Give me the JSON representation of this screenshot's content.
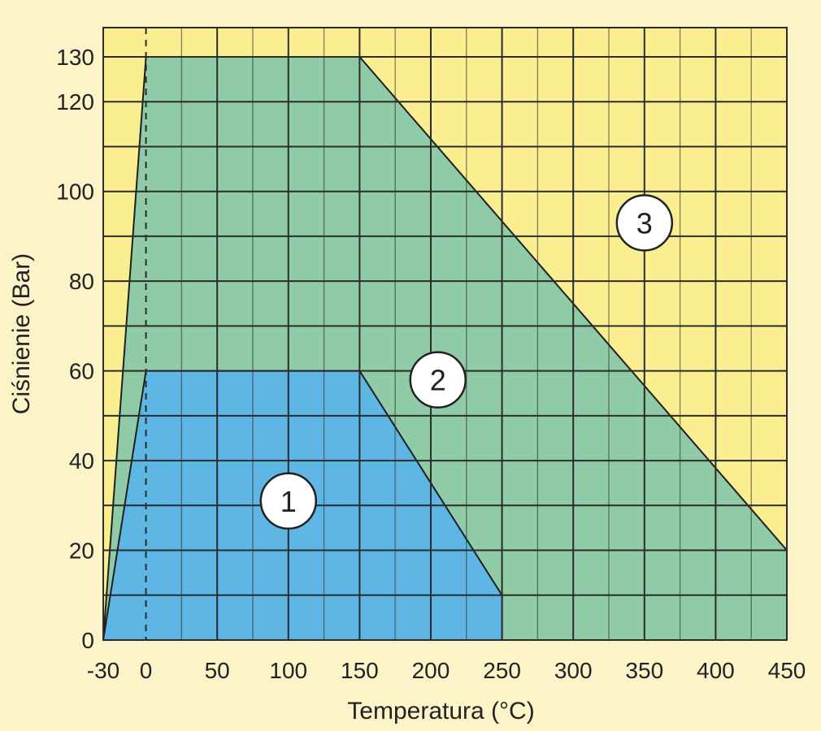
{
  "chart_data": {
    "type": "area",
    "xlabel": "Temperatura (°C)",
    "ylabel": "Ciśnienie (Bar)",
    "xlim": [
      -30,
      450
    ],
    "ylim": [
      0,
      130
    ],
    "x_ticks": [
      "-30",
      "0",
      "50",
      "100",
      "150",
      "200",
      "250",
      "300",
      "350",
      "400",
      "450"
    ],
    "y_ticks": [
      "0",
      "20",
      "40",
      "60",
      "80",
      "100",
      "120",
      "130"
    ],
    "grid": true,
    "colors": {
      "background": "#fdf3c8",
      "zone_3": "#fbee91",
      "zone_2": "#8ecba6",
      "zone_1": "#5db6e3",
      "grid": "#2b2b2b"
    },
    "zones": [
      {
        "label": "3",
        "points": [
          [
            -30,
            0
          ],
          [
            -30,
            130
          ],
          [
            450,
            130
          ],
          [
            450,
            0
          ]
        ],
        "label_at": [
          350,
          93
        ]
      },
      {
        "label": "2",
        "points": [
          [
            -30,
            0
          ],
          [
            0,
            130
          ],
          [
            150,
            130
          ],
          [
            450,
            20
          ],
          [
            450,
            0
          ]
        ],
        "label_at": [
          205,
          58
        ]
      },
      {
        "label": "1",
        "points": [
          [
            -30,
            0
          ],
          [
            0,
            60
          ],
          [
            150,
            60
          ],
          [
            250,
            10
          ],
          [
            250,
            0
          ]
        ],
        "label_at": [
          100,
          31
        ]
      }
    ],
    "reference_line_x": 0
  }
}
